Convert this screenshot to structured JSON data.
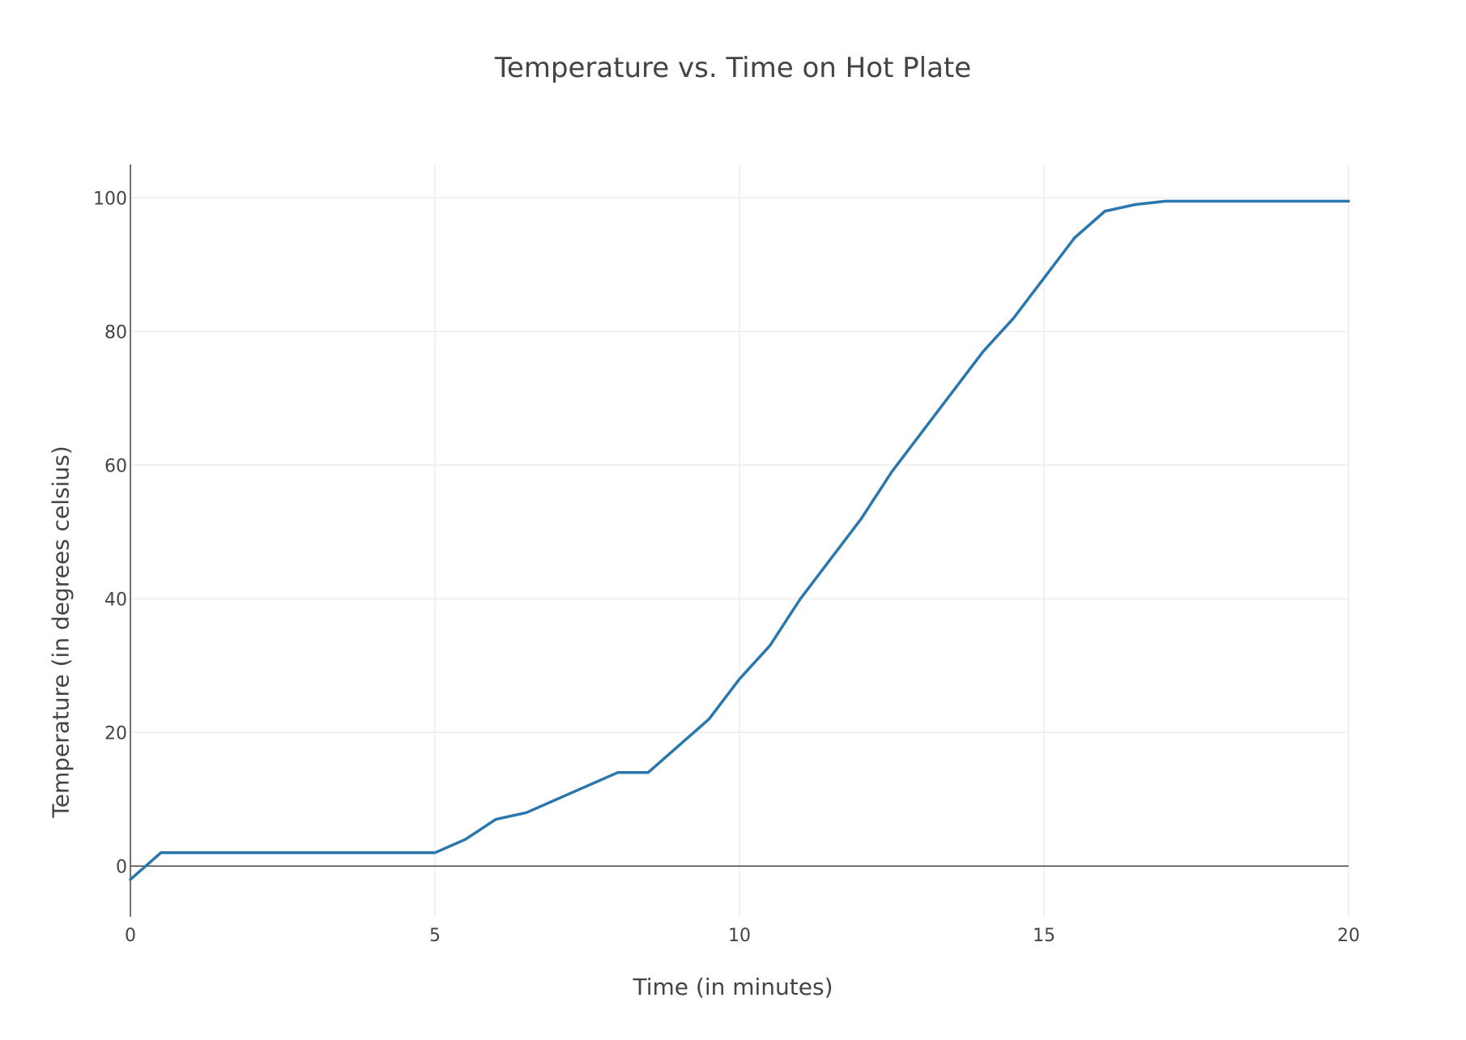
{
  "chart_data": {
    "type": "line",
    "title": "Temperature vs. Time on Hot Plate",
    "xlabel": "Time (in minutes)",
    "ylabel": "Temperature (in degrees celsius)",
    "xlim": [
      0,
      20
    ],
    "ylim": [
      -7.6,
      105
    ],
    "x_ticks": [
      0,
      5,
      10,
      15,
      20
    ],
    "x_tick_labels": [
      "0",
      "5",
      "10",
      "15",
      "20"
    ],
    "y_ticks": [
      0,
      20,
      40,
      60,
      80,
      100
    ],
    "y_tick_labels": [
      "0",
      "20",
      "40",
      "60",
      "80",
      "100"
    ],
    "grid": true,
    "legend": "none",
    "colors": {
      "line": "#2a77ad",
      "grid": "#eeeeee",
      "zeroline": "#444444",
      "text": "#444444"
    },
    "x": [
      0,
      0.5,
      1,
      1.5,
      2,
      2.5,
      3,
      3.5,
      4,
      4.5,
      5,
      5.5,
      6,
      6.5,
      7,
      7.5,
      8,
      8.5,
      9,
      9.5,
      10,
      10.5,
      11,
      11.5,
      12,
      12.5,
      13,
      13.5,
      14,
      14.5,
      15,
      15.5,
      16,
      16.5,
      17,
      17.5,
      18,
      18.5,
      19,
      19.5,
      20
    ],
    "y": [
      -2,
      2,
      2,
      2,
      2,
      2,
      2,
      2,
      2,
      2,
      2,
      4,
      7,
      8,
      10,
      12,
      14,
      14,
      18,
      22,
      28,
      33,
      40,
      46,
      52,
      59,
      65,
      71,
      77,
      82,
      88,
      94,
      98,
      99,
      99.5,
      99.5,
      99.5,
      99.5,
      99.5,
      99.5,
      99.5
    ]
  }
}
